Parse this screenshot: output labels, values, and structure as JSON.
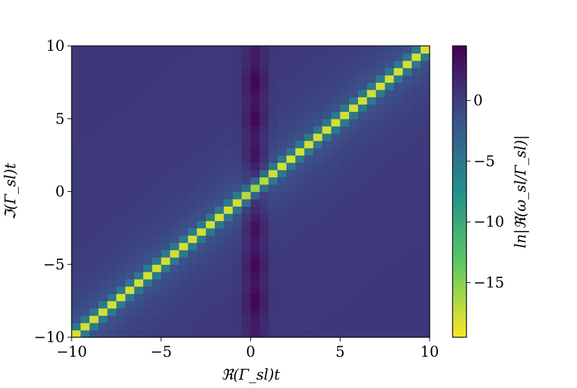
{
  "chart_data": {
    "type": "heatmap",
    "title": "",
    "xlabel": "ℜ(Γ_sl)t",
    "ylabel": "ℑ(Γ_sl)t",
    "colorbar_label": "ln|ℜ(ω_sl/Γ_sl)|",
    "xlim": [
      -10,
      10
    ],
    "ylim": [
      -10,
      10
    ],
    "x_ticks": [
      -10,
      -5,
      0,
      5,
      10
    ],
    "y_ticks": [
      -10,
      -5,
      0,
      5,
      10
    ],
    "x_tick_labels": [
      "−10",
      "−5",
      "0",
      "5",
      "10"
    ],
    "y_tick_labels": [
      "−10",
      "−5",
      "0",
      "5",
      "10"
    ],
    "colorbar_ticks": [
      0,
      -5,
      -10,
      -15
    ],
    "colorbar_tick_labels": [
      "0",
      "−5",
      "−10",
      "−15"
    ],
    "color_range": [
      -19.5,
      4.5
    ],
    "colormap": "viridis_r",
    "grid": false,
    "resolution": 40,
    "structure": {
      "background_value": 0.4,
      "diagonal_min_value": -19.5,
      "center_column_peak_value": 4.3,
      "center_column_minima_y": [
        -7.5,
        -5,
        -2.5,
        2.5,
        5,
        7.5
      ]
    }
  }
}
